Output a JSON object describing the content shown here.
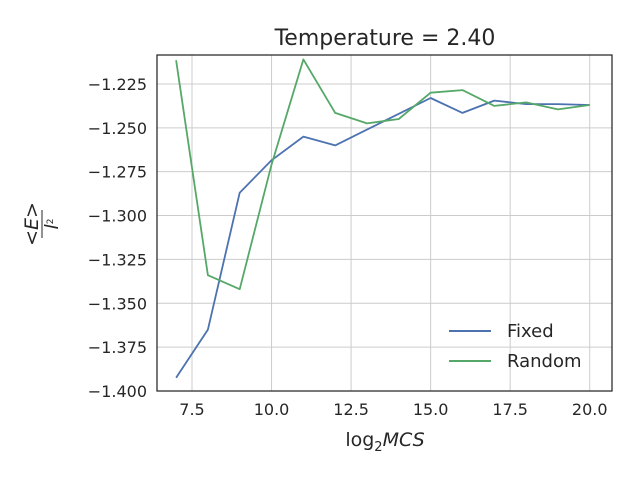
{
  "chart_data": {
    "type": "line",
    "title": "Temperature = 2.40",
    "xlabel": "log₂MCS",
    "ylabel": "<E> / l²",
    "xlim": [
      6.4,
      20.7
    ],
    "ylim": [
      -1.4,
      -1.2085
    ],
    "xticks": [
      7.5,
      10.0,
      12.5,
      15.0,
      17.5,
      20.0
    ],
    "xtick_labels": [
      "7.5",
      "10.0",
      "12.5",
      "15.0",
      "17.5",
      "20.0"
    ],
    "yticks": [
      -1.4,
      -1.375,
      -1.35,
      -1.325,
      -1.3,
      -1.275,
      -1.25,
      -1.225
    ],
    "ytick_labels": [
      "−1.400",
      "−1.375",
      "−1.350",
      "−1.325",
      "−1.300",
      "−1.275",
      "−1.250",
      "−1.225"
    ],
    "grid": true,
    "legend_position": "lower-right",
    "series": [
      {
        "name": "Fixed",
        "color": "#4c72b0",
        "x": [
          7,
          8,
          9,
          10,
          11,
          12,
          13,
          14,
          15,
          16,
          17,
          18,
          19,
          20
        ],
        "y": [
          -1.3925,
          -1.365,
          -1.287,
          -1.2685,
          -1.255,
          -1.26,
          -1.251,
          -1.242,
          -1.233,
          -1.2415,
          -1.2345,
          -1.2365,
          -1.2365,
          -1.237
        ]
      },
      {
        "name": "Random",
        "color": "#55a868",
        "x": [
          7,
          8,
          9,
          10,
          11,
          12,
          13,
          14,
          15,
          16,
          17,
          18,
          19,
          20
        ],
        "y": [
          -1.2115,
          -1.334,
          -1.342,
          -1.271,
          -1.211,
          -1.2415,
          -1.2475,
          -1.245,
          -1.23,
          -1.2285,
          -1.2375,
          -1.2355,
          -1.2395,
          -1.237
        ]
      }
    ]
  }
}
